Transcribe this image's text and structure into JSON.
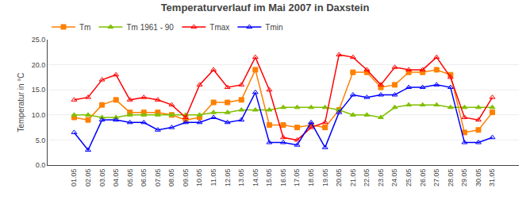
{
  "chart_data": {
    "type": "line",
    "title": "Temperaturverlauf im Mai 2007 in Daxstein",
    "ylabel": "Temperatur in °C",
    "categories": [
      "01.05",
      "02.05",
      "03.05",
      "04.05",
      "05.05",
      "06.05",
      "07.05",
      "08.05",
      "09.05",
      "10.05",
      "11.05",
      "12.05",
      "13.05",
      "14.05",
      "15.05",
      "16.05",
      "17.05",
      "18.05",
      "19.05",
      "20.05",
      "21.05",
      "22.05",
      "23.05",
      "24.05",
      "25.05",
      "26.05",
      "27.05",
      "28.05",
      "29.05",
      "30.05",
      "31.05"
    ],
    "series": [
      {
        "name": "Tm",
        "color": "#ff8000",
        "marker": "square",
        "line_style": "solid",
        "values": [
          9.5,
          9.0,
          12.0,
          13.0,
          10.5,
          10.5,
          10.5,
          10.0,
          9.0,
          9.5,
          12.5,
          12.5,
          13.0,
          19.0,
          8.0,
          8.0,
          7.5,
          8.0,
          7.5,
          11.0,
          18.5,
          18.5,
          15.5,
          16.0,
          18.5,
          18.5,
          19.0,
          18.0,
          6.5,
          7.0,
          10.5
        ]
      },
      {
        "name": "Tm 1961 - 90",
        "color": "#80c000",
        "marker": "triangle-up",
        "line_style": "solid",
        "values": [
          10.0,
          10.0,
          9.5,
          9.5,
          10.0,
          10.0,
          10.0,
          10.0,
          10.0,
          10.0,
          10.5,
          10.5,
          11.0,
          11.0,
          11.0,
          11.5,
          11.5,
          11.5,
          11.5,
          11.0,
          10.0,
          10.0,
          9.5,
          11.5,
          12.0,
          12.0,
          12.0,
          11.5,
          11.5,
          11.5,
          11.5
        ]
      },
      {
        "name": "Tmax",
        "color": "#ff0000",
        "marker": "triangle-up-open",
        "line_style": "solid",
        "values": [
          13.0,
          13.5,
          17.0,
          18.0,
          13.0,
          13.5,
          13.0,
          12.0,
          9.5,
          16.0,
          19.0,
          15.5,
          16.0,
          21.5,
          15.0,
          5.5,
          5.0,
          7.5,
          8.5,
          22.0,
          21.5,
          19.0,
          16.0,
          19.5,
          19.0,
          19.0,
          21.5,
          17.5,
          9.5,
          9.0,
          13.5
        ]
      },
      {
        "name": "Tmin",
        "color": "#0000ff",
        "marker": "triangle-up-open",
        "line_style": "solid",
        "values": [
          6.5,
          3.0,
          9.0,
          9.0,
          8.5,
          8.5,
          7.0,
          7.5,
          8.5,
          8.5,
          9.5,
          8.5,
          9.0,
          14.5,
          4.5,
          4.5,
          4.0,
          8.5,
          3.5,
          10.5,
          14.0,
          13.5,
          14.0,
          14.0,
          15.5,
          15.5,
          16.0,
          15.5,
          4.5,
          4.5,
          5.5
        ]
      }
    ],
    "ylim": [
      0,
      25
    ],
    "yticks": [
      {
        "value": 0,
        "label": "0.0"
      },
      {
        "value": 5,
        "label": "5.0"
      },
      {
        "value": 10,
        "label": "10.0"
      },
      {
        "value": 15,
        "label": "15.0"
      },
      {
        "value": 20,
        "label": "20.0"
      },
      {
        "value": 25,
        "label": "25.0"
      }
    ],
    "grid": true,
    "legend": "upper left"
  }
}
